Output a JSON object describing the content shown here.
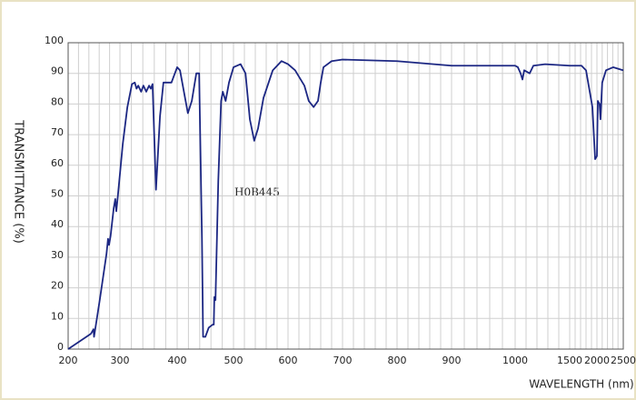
{
  "chart_data": {
    "type": "line",
    "annotation": "H0B445",
    "xlabel": "WAVELENGTH (nm)",
    "ylabel": "TRANSMITTANCE  (%)",
    "xlim": [
      200,
      2500
    ],
    "ylim": [
      0,
      100
    ],
    "xticks": [
      200,
      300,
      400,
      500,
      600,
      700,
      800,
      900,
      1000,
      1500,
      2000,
      2500
    ],
    "yticks": [
      0,
      10,
      20,
      30,
      40,
      50,
      60,
      70,
      80,
      90,
      100
    ],
    "grid": true,
    "series": [
      {
        "color": "#1c2783",
        "x": [
          200,
          244,
          249,
          250,
          261,
          274,
          277,
          279,
          282,
          288,
          291,
          293,
          296,
          305,
          313,
          321,
          326,
          329,
          332,
          337,
          341,
          346,
          351,
          354,
          357,
          363,
          370,
          376,
          386,
          390,
          400,
          405,
          415,
          419,
          426,
          434,
          439,
          444,
          446,
          450,
          456,
          463,
          465,
          466,
          468,
          473,
          478,
          481,
          486,
          492,
          500,
          513,
          522,
          530,
          538,
          545,
          555,
          572,
          588,
          600,
          613,
          630,
          638,
          647,
          655,
          660,
          665,
          680,
          700,
          800,
          900,
          961,
          1000,
          1025,
          1050,
          1067,
          1083,
          1133,
          1167,
          1275,
          1500,
          1717,
          1800,
          1917,
          1967,
          2000,
          2017,
          2050,
          2067,
          2100,
          2172,
          2310,
          2500
        ],
        "values": [
          0,
          5,
          6.5,
          4,
          16,
          31,
          36,
          34,
          37,
          46,
          49,
          45,
          50,
          67,
          79,
          86.5,
          87,
          85,
          86,
          84,
          86,
          84,
          86,
          85,
          86.5,
          52,
          76,
          87,
          87,
          87,
          92,
          91,
          81,
          77,
          81,
          90,
          90,
          36,
          4,
          4,
          7,
          8,
          8,
          17,
          16,
          55,
          81,
          84,
          81,
          87,
          92,
          93,
          90,
          75,
          68,
          72,
          82,
          91,
          94,
          93,
          91,
          86,
          81,
          79,
          81,
          87,
          92,
          94,
          94.5,
          94,
          92.5,
          92.5,
          92.5,
          92,
          90,
          88,
          91,
          90,
          92.5,
          93,
          92.5,
          92.5,
          91,
          79,
          62,
          63,
          81,
          80,
          75,
          87,
          91,
          92,
          91
        ]
      }
    ]
  }
}
